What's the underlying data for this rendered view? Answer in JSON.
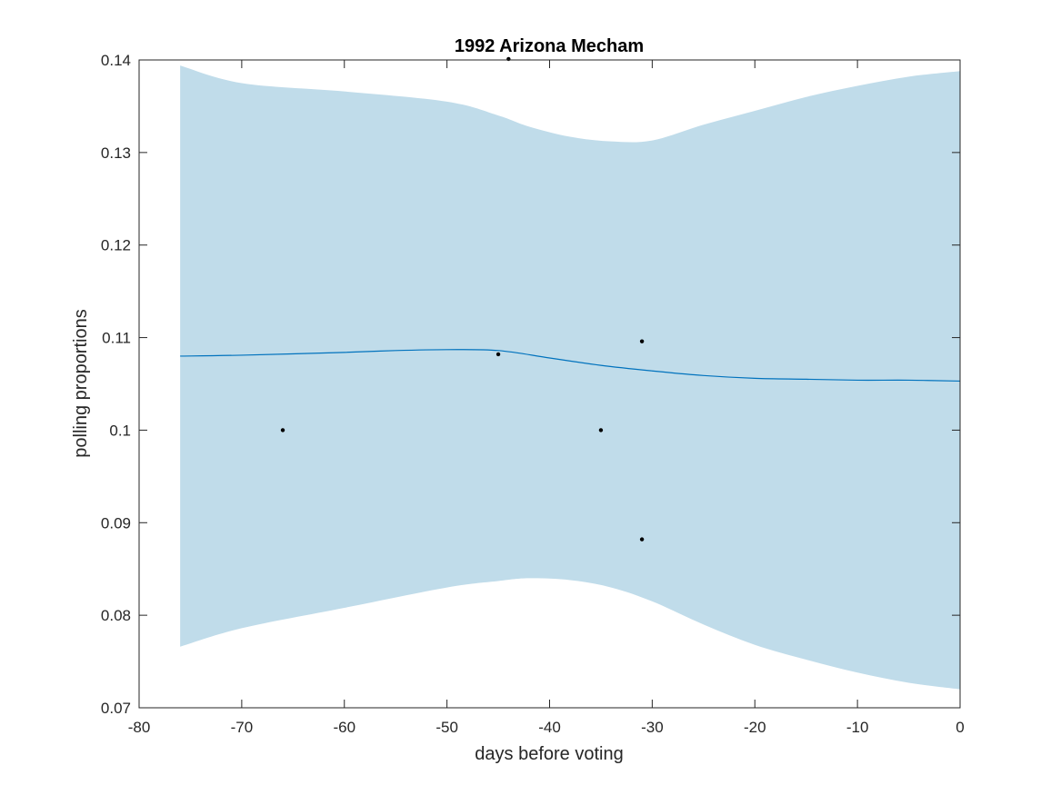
{
  "chart_data": {
    "type": "line",
    "title": "1992 Arizona Mecham",
    "xlabel": "days before voting",
    "ylabel": "polling proportions",
    "xlim": [
      -80,
      0
    ],
    "ylim": [
      0.07,
      0.14
    ],
    "x_ticks": [
      -80,
      -70,
      -60,
      -50,
      -40,
      -30,
      -20,
      -10,
      0
    ],
    "x_tick_labels": [
      "-80",
      "-70",
      "-60",
      "-50",
      "-40",
      "-30",
      "-20",
      "-10",
      "0"
    ],
    "y_ticks": [
      0.07,
      0.08,
      0.09,
      0.1,
      0.11,
      0.12,
      0.13,
      0.14
    ],
    "y_tick_labels": [
      "0.07",
      "0.08",
      "0.09",
      "0.1",
      "0.11",
      "0.12",
      "0.13",
      "0.14"
    ],
    "grid": false,
    "legend": "none",
    "band": {
      "x": [
        -76,
        -70,
        -60,
        -50,
        -45,
        -42,
        -38,
        -34,
        -30,
        -25,
        -20,
        -15,
        -10,
        -5,
        0
      ],
      "lower": [
        0.0766,
        0.0786,
        0.0808,
        0.083,
        0.0837,
        0.084,
        0.0838,
        0.083,
        0.0815,
        0.079,
        0.0768,
        0.0752,
        0.0738,
        0.0727,
        0.072
      ],
      "upper": [
        0.1394,
        0.1375,
        0.1366,
        0.1355,
        0.134,
        0.1328,
        0.1317,
        0.1312,
        0.1313,
        0.133,
        0.1345,
        0.136,
        0.1372,
        0.1382,
        0.1388
      ]
    },
    "series": [
      {
        "x": [
          -76,
          -70,
          -60,
          -55,
          -50,
          -45,
          -40,
          -35,
          -30,
          -25,
          -20,
          -15,
          -10,
          -5,
          0
        ],
        "y": [
          0.108,
          0.1081,
          0.1084,
          0.1086,
          0.1087,
          0.1086,
          0.1078,
          0.107,
          0.1064,
          0.1059,
          0.1056,
          0.1055,
          0.1054,
          0.1054,
          0.1053
        ]
      }
    ],
    "points": {
      "x": [
        -66,
        -45,
        -44,
        -35,
        -31,
        -31
      ],
      "y": [
        0.1,
        0.1082,
        0.1401,
        0.1,
        0.1096,
        0.0882
      ]
    },
    "colors": {
      "band": "#c0dcea",
      "line": "#0072bd",
      "points": "#000000",
      "axis": "#262626"
    }
  }
}
